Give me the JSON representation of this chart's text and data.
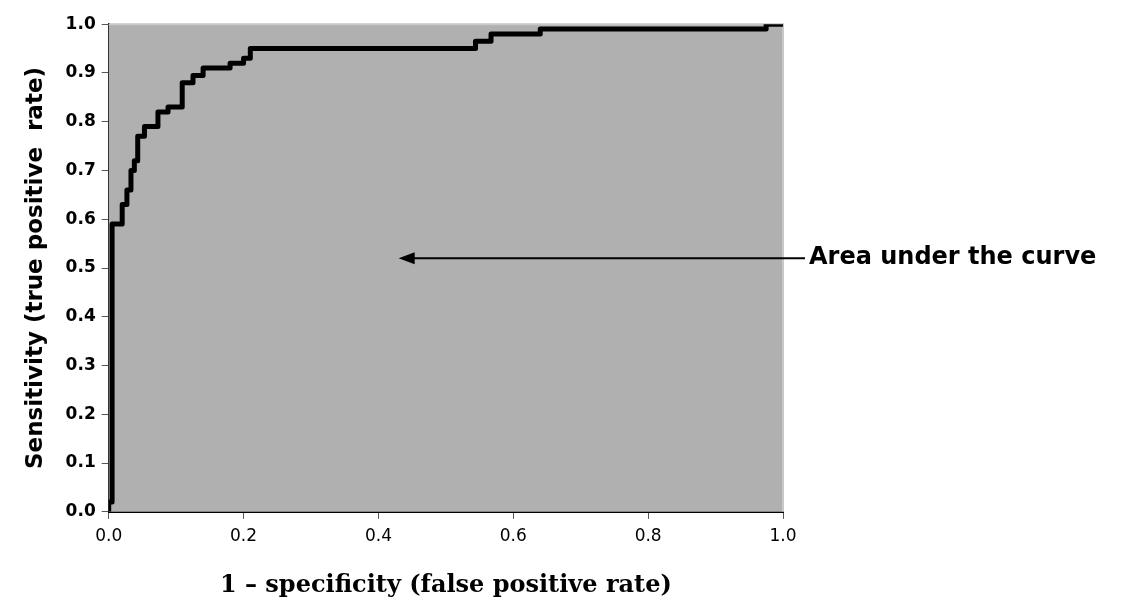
{
  "chart_data": {
    "type": "line",
    "xlabel": "1 – specificity (false positive rate)",
    "ylabel": "Sensitivity (true positive  rate)",
    "x": [
      0,
      0,
      0.005,
      0.005,
      0.02,
      0.02,
      0.027,
      0.027,
      0.033,
      0.033,
      0.038,
      0.038,
      0.043,
      0.043,
      0.053,
      0.053,
      0.073,
      0.073,
      0.088,
      0.088,
      0.109,
      0.109,
      0.125,
      0.125,
      0.14,
      0.14,
      0.18,
      0.18,
      0.2,
      0.2,
      0.21,
      0.21,
      0.544,
      0.544,
      0.567,
      0.567,
      0.64,
      0.64,
      0.975,
      0.975,
      1.0
    ],
    "series": [
      {
        "color": "#000000",
        "values": [
          0,
          0.02,
          0.02,
          0.59,
          0.59,
          0.63,
          0.63,
          0.66,
          0.66,
          0.7,
          0.7,
          0.72,
          0.72,
          0.77,
          0.77,
          0.79,
          0.79,
          0.82,
          0.82,
          0.83,
          0.83,
          0.88,
          0.88,
          0.895,
          0.895,
          0.91,
          0.91,
          0.92,
          0.92,
          0.93,
          0.93,
          0.95,
          0.95,
          0.965,
          0.965,
          0.98,
          0.98,
          0.99,
          0.99,
          1.0,
          1.0
        ]
      }
    ],
    "xlim": [
      0,
      1
    ],
    "xticks": [
      {
        "value": 0,
        "label": "0.0"
      },
      0.2,
      0.4,
      0.6,
      0.8,
      {
        "value": 1,
        "label": "1.0"
      }
    ],
    "ylim": [
      0,
      1
    ],
    "yticks": [
      {
        "value": 0,
        "label": "0.0"
      },
      0.1,
      0.2,
      0.3,
      0.4,
      0.5,
      0.6,
      0.7,
      0.8,
      0.9,
      {
        "value": 1,
        "label": "1.0"
      }
    ],
    "legend": false,
    "marker": "none",
    "line_style": "solid",
    "annotations": [
      "Area under the curve"
    ]
  }
}
